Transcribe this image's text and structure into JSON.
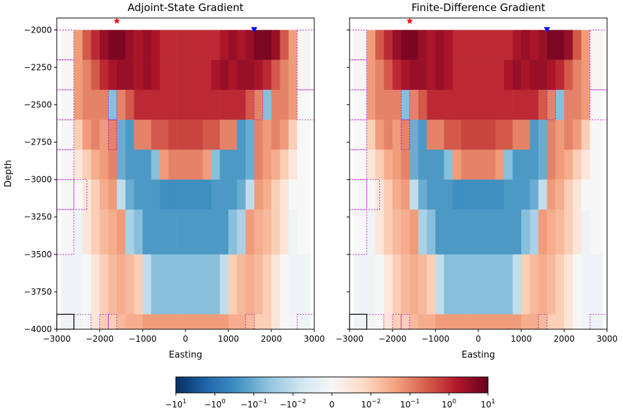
{
  "chart_data": [
    {
      "type": "heatmap",
      "title": "Adjoint-State Gradient",
      "xlabel": "Easting",
      "ylabel": "Depth",
      "xlim": [
        -3000,
        3000
      ],
      "ylim": [
        -4000,
        -1920
      ],
      "xticks": [
        -3000,
        -2000,
        -1000,
        0,
        1000,
        2000,
        3000
      ],
      "xtick_labels": [
        "−3000",
        "−2000",
        "−1000",
        "0",
        "1000",
        "2000",
        "3000"
      ],
      "yticks": [
        -2000,
        -2250,
        -2500,
        -2750,
        -3000,
        -3250,
        -3500,
        -3750,
        -4000
      ],
      "ytick_labels": [
        "−2000",
        "−2250",
        "−2500",
        "−2750",
        "−3000",
        "−3250",
        "−3500",
        "−3750",
        "−4000"
      ],
      "source_marker": {
        "x": -1600,
        "y": -1940,
        "symbol": "star",
        "color": "#ff0000"
      },
      "receiver_marker": {
        "x": 1600,
        "y": -2000,
        "symbol": "triangle-down",
        "color": "#0000ff"
      }
    },
    {
      "type": "heatmap",
      "title": "Finite-Difference Gradient",
      "xlabel": "Easting",
      "ylabel": "",
      "xlim": [
        -3000,
        3000
      ],
      "ylim": [
        -4000,
        -1920
      ],
      "xticks": [
        -3000,
        -2000,
        -1000,
        0,
        1000,
        2000,
        3000
      ],
      "xtick_labels": [
        "−3000",
        "−2000",
        "−1000",
        "0",
        "1000",
        "2000",
        "3000"
      ],
      "yticks": [
        -2000,
        -2250,
        -2500,
        -2750,
        -3000,
        -3250,
        -3500,
        -3750,
        -4000
      ],
      "source_marker": {
        "x": -1600,
        "y": -1940,
        "symbol": "star",
        "color": "#ff0000"
      },
      "receiver_marker": {
        "x": 1600,
        "y": -2000,
        "symbol": "triangle-down",
        "color": "#0000ff"
      }
    }
  ],
  "grid": {
    "x_edges": [
      -2900,
      -2600,
      -2400,
      -2200,
      -2000,
      -1800,
      -1600,
      -1400,
      -1200,
      -1000,
      -800,
      -600,
      -400,
      -200,
      0,
      200,
      400,
      600,
      800,
      1000,
      1200,
      1400,
      1600,
      1800,
      2000,
      2200,
      2400,
      2600,
      2900
    ],
    "y_edges": [
      -2000,
      -2200,
      -2400,
      -2600,
      -2800,
      -3000,
      -3200,
      -3500,
      -3900,
      -4000
    ],
    "values": [
      [
        0.001,
        0.05,
        0.3,
        1,
        3,
        6,
        6,
        3,
        2,
        3,
        2,
        1,
        1,
        1,
        1,
        1,
        1,
        1,
        2,
        3,
        2,
        3,
        6,
        6,
        3,
        0.3,
        0.05,
        0.001
      ],
      [
        0.001,
        0.05,
        0.1,
        0.3,
        1,
        2,
        3,
        3,
        2,
        3,
        2,
        1,
        1,
        1,
        1,
        1,
        1,
        2,
        3,
        2,
        3,
        3,
        2,
        1,
        0.3,
        0.1,
        0.05,
        0.001
      ],
      [
        0,
        0.05,
        0.1,
        0.1,
        0.1,
        -0.05,
        0.1,
        0.3,
        1,
        1,
        1,
        1,
        1,
        1,
        1,
        1,
        1,
        1,
        1,
        1,
        1,
        0.3,
        0.1,
        -0.05,
        0.1,
        0.1,
        0.05,
        0
      ],
      [
        0,
        0.01,
        0.05,
        0.1,
        0.05,
        0.1,
        -0.1,
        -0.2,
        0.1,
        0.1,
        0.3,
        0.3,
        0.5,
        0.5,
        0.5,
        0.5,
        0.3,
        0.3,
        0.1,
        0.1,
        -0.2,
        -0.1,
        0.1,
        0.05,
        0.1,
        0.05,
        0.01,
        0
      ],
      [
        0,
        0.005,
        0.01,
        0.03,
        0.05,
        0.1,
        -0.1,
        -0.2,
        -0.2,
        -0.2,
        -0.05,
        0.05,
        0.1,
        0.1,
        0.1,
        0.1,
        0.05,
        -0.05,
        -0.2,
        -0.2,
        -0.2,
        -0.1,
        0.1,
        0.05,
        0.03,
        0.01,
        0.005,
        0
      ],
      [
        0,
        0,
        0.005,
        0.01,
        0.03,
        0.05,
        -0.01,
        -0.1,
        -0.2,
        -0.2,
        -0.2,
        -0.3,
        -0.3,
        -0.3,
        -0.3,
        -0.3,
        -0.3,
        -0.2,
        -0.2,
        -0.2,
        -0.1,
        -0.01,
        0.05,
        0.03,
        0.01,
        0.005,
        0,
        0
      ],
      [
        0,
        -0.002,
        0.005,
        0.01,
        0.02,
        0.03,
        0.05,
        -0.02,
        -0.05,
        -0.2,
        -0.2,
        -0.2,
        -0.2,
        -0.2,
        -0.2,
        -0.2,
        -0.2,
        -0.2,
        -0.2,
        -0.05,
        -0.02,
        0.05,
        0.03,
        0.02,
        0.01,
        0.005,
        -0.002,
        0
      ],
      [
        -0.002,
        -0.002,
        0,
        0.005,
        0.01,
        0.02,
        0.03,
        0.02,
        0.01,
        -0.01,
        -0.05,
        -0.05,
        -0.05,
        -0.05,
        -0.05,
        -0.05,
        -0.05,
        -0.05,
        -0.01,
        0.01,
        0.02,
        0.03,
        0.02,
        0.01,
        0.005,
        0,
        -0.002,
        -0.002
      ],
      [
        -0.002,
        -0.001,
        0,
        0.005,
        0.01,
        0.01,
        0.02,
        0.03,
        0.03,
        0.05,
        0.05,
        0.05,
        0.05,
        0.05,
        0.05,
        0.05,
        0.05,
        0.05,
        0.05,
        0.03,
        0.03,
        0.02,
        0.01,
        0.01,
        0.005,
        0,
        -0.001,
        -0.002
      ]
    ]
  },
  "colorbar": {
    "type": "symlog",
    "colormap": "RdBu_r",
    "range": [
      -10,
      10
    ],
    "tick_values": [
      -10,
      -1,
      -0.1,
      -0.01,
      0,
      0.01,
      0.1,
      1,
      10
    ],
    "tick_labels": [
      {
        "base": "−10",
        "exp": "1"
      },
      {
        "base": "−10",
        "exp": "0"
      },
      {
        "base": "−10",
        "exp": "−1"
      },
      {
        "base": "−10",
        "exp": "−2"
      },
      {
        "base": "0",
        "exp": ""
      },
      {
        "base": "10",
        "exp": "−2"
      },
      {
        "base": "10",
        "exp": "−1"
      },
      {
        "base": "10",
        "exp": "0"
      },
      {
        "base": "10",
        "exp": "1"
      }
    ]
  },
  "colors": {
    "mesh_outline": "#b000c8",
    "source_star": "#ff0000",
    "receiver_triangle": "#0000ff",
    "background_cell": "#f5f5f5"
  }
}
